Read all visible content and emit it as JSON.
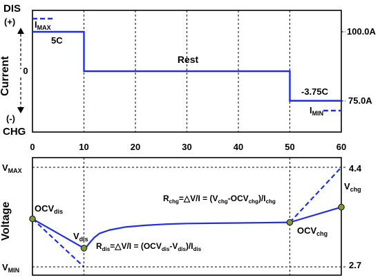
{
  "chart_data": [
    {
      "type": "line",
      "ylabel": "Current",
      "top_label": "DIS",
      "top_sign": "(+)",
      "bottom_sign": "(-)",
      "bottom_label": "CHG",
      "zero_label": "0",
      "x_ticks": [
        "0",
        "10",
        "20",
        "30",
        "40",
        "50",
        "60"
      ],
      "xlim": [
        0,
        60
      ],
      "ylim": [
        -3.0,
        4.3
      ],
      "grid": "dashed vertical lines at x ticks",
      "series": [
        {
          "x": [
            0,
            10,
            10,
            50,
            50,
            60
          ],
          "y": [
            3,
            3,
            0,
            0,
            -2.25,
            -2.25
          ],
          "style": "solid",
          "color": "#1f2fe0"
        },
        {
          "x": [
            0,
            4.3
          ],
          "y": [
            4,
            4
          ],
          "style": "dashed",
          "color": "#1f2fe0"
        },
        {
          "x": [
            56.5,
            60
          ],
          "y": [
            -3,
            -3
          ],
          "style": "dashed",
          "color": "#1f2fe0"
        }
      ],
      "annotations": {
        "imax": {
          "main": "I",
          "sub": "MAX"
        },
        "c5": "5C",
        "rest": "Rest",
        "c375": "-3.75C",
        "imin": {
          "main": "I",
          "sub": "MIN"
        }
      },
      "right_labels": {
        "upper": "100.0A",
        "lower": "75.0A"
      }
    },
    {
      "type": "line",
      "ylabel": "Voltage",
      "vmax": {
        "main": "V",
        "sub": "MAX"
      },
      "vmin": {
        "main": "V",
        "sub": "MIN"
      },
      "right_ticks": {
        "upper": "4.4",
        "lower": "2.7"
      },
      "xlim": [
        0,
        60
      ],
      "ylim": [
        2.7,
        4.4
      ],
      "series": [
        {
          "name": "",
          "style": "solid",
          "color": "#1f2fe0",
          "x": [
            0,
            10,
            10.5,
            11,
            12,
            13,
            15,
            18,
            22,
            26,
            30,
            35,
            40,
            45,
            50,
            60
          ],
          "y": [
            3.52,
            3.02,
            3.04,
            3.1,
            3.2,
            3.27,
            3.33,
            3.38,
            3.41,
            3.43,
            3.44,
            3.445,
            3.45,
            3.455,
            3.46,
            3.72
          ]
        },
        {
          "x": [
            0,
            10
          ],
          "y": [
            3.52,
            2.7
          ],
          "style": "dashed",
          "color": "#1f2fe0"
        },
        {
          "x": [
            50,
            60
          ],
          "y": [
            3.46,
            4.4
          ],
          "style": "dashed",
          "color": "#1f2fe0"
        }
      ],
      "points": [
        {
          "x": 0,
          "y": 3.52,
          "label": {
            "main": "OCV",
            "sub": "dis"
          }
        },
        {
          "x": 10,
          "y": 3.02,
          "label": {
            "main": "V",
            "sub": "dis"
          }
        },
        {
          "x": 50,
          "y": 3.46,
          "label": {
            "main": "OCV",
            "sub": "chg"
          }
        },
        {
          "x": 60,
          "y": 3.72,
          "label": {
            "main": "V",
            "sub": "chg"
          }
        }
      ],
      "formula_chg": [
        {
          "t": "R"
        },
        {
          "t": "chg",
          "sub": true
        },
        {
          "t": "=△V/I = (V"
        },
        {
          "t": "chg",
          "sub": true
        },
        {
          "t": "-OCV"
        },
        {
          "t": "chg",
          "sub": true
        },
        {
          "t": ")/I"
        },
        {
          "t": "chg",
          "sub": true
        }
      ],
      "formula_dis": [
        {
          "t": "R"
        },
        {
          "t": "dis",
          "sub": true
        },
        {
          "t": "=△V/I = (OCV"
        },
        {
          "t": "dis",
          "sub": true
        },
        {
          "t": "-V"
        },
        {
          "t": "dis",
          "sub": true
        },
        {
          "t": ")/I"
        },
        {
          "t": "dis",
          "sub": true
        }
      ]
    }
  ]
}
